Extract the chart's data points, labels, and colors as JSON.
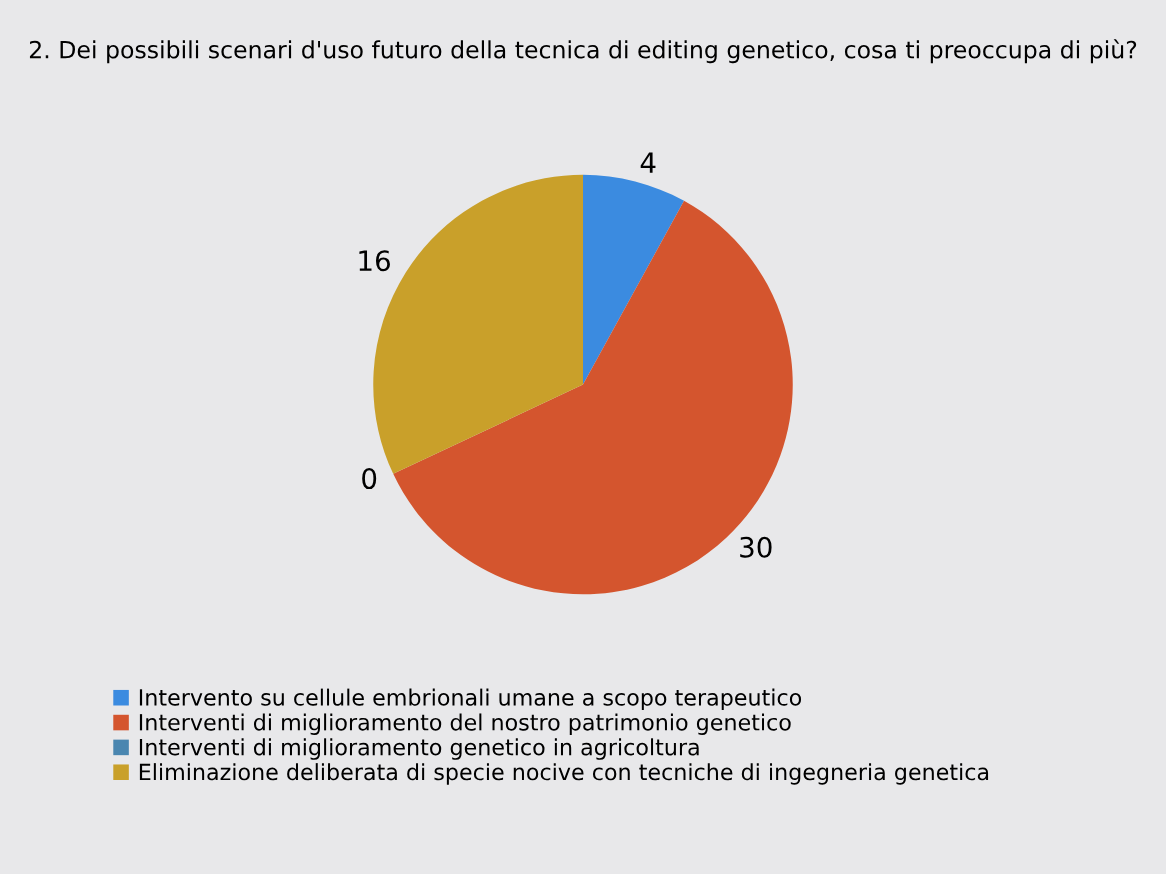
{
  "chart_data": {
    "type": "pie",
    "title": "2. Dei possibili scenari d'uso futuro della tecnica di editing genetico, cosa ti preoccupa di più?",
    "categories": [
      "Intervento su cellule embrionali umane a scopo terapeutico",
      "Interventi di miglioramento del nostro patrimonio genetico",
      "Interventi di miglioramento genetico in agricoltura",
      "Eliminazione deliberata di specie nocive con tecniche di ingegneria genetica"
    ],
    "values": [
      4,
      30,
      0,
      16
    ],
    "colors": [
      "#3b8be0",
      "#d4552e",
      "#4a86b0",
      "#c9a02a"
    ],
    "value_labels": [
      "4",
      "30",
      "0",
      "16"
    ],
    "legend": "bottom"
  }
}
